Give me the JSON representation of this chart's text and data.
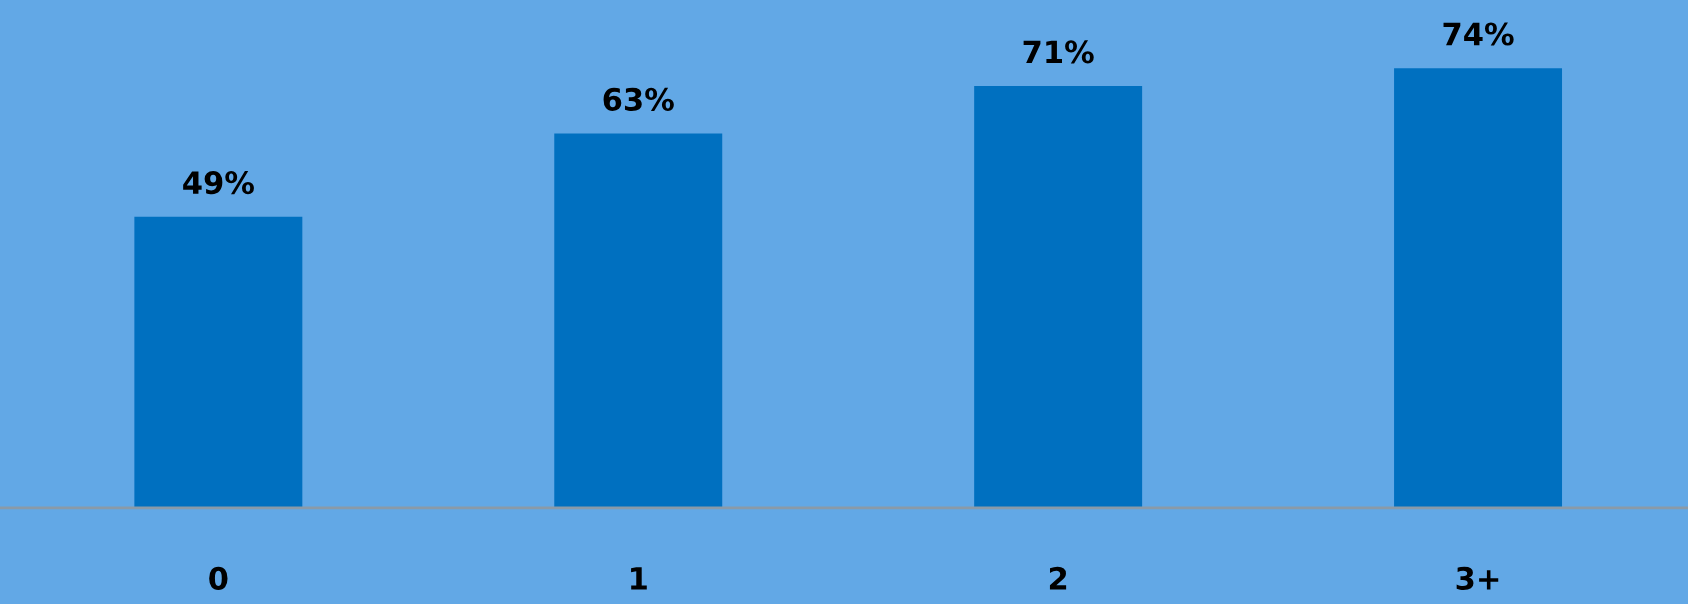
{
  "chart_data": {
    "type": "bar",
    "categories": [
      "0",
      "1",
      "2",
      "3+"
    ],
    "values": [
      49,
      63,
      71,
      74
    ],
    "value_labels": [
      "49%",
      "63%",
      "71%",
      "74%"
    ],
    "color": "#0070c0",
    "grid": false,
    "legend": false
  }
}
